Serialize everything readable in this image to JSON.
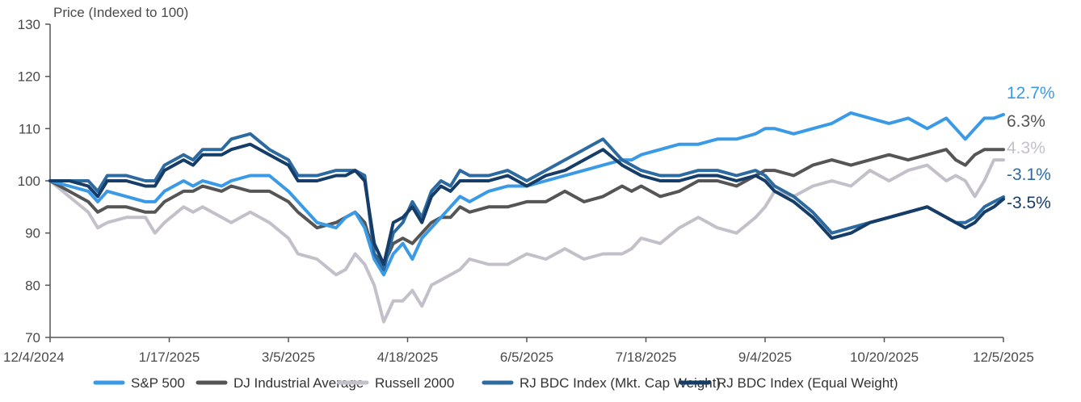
{
  "chart_data": {
    "type": "line",
    "ylabel": "Price (Indexed to 100)",
    "xlabel": "",
    "ylim": [
      70,
      130
    ],
    "yticks": [
      70,
      80,
      90,
      100,
      110,
      120,
      130
    ],
    "xticks": [
      "12/4/2024",
      "1/17/2025",
      "3/5/2025",
      "4/18/2025",
      "6/5/2025",
      "7/18/2025",
      "9/4/2025",
      "10/20/2025",
      "12/5/2025"
    ],
    "x_index_range": [
      0,
      100
    ],
    "grid": false,
    "legend_position": "bottom",
    "series": [
      {
        "name": "Russell 2000",
        "color": "#c3c0ca",
        "end_label": "4.3%",
        "x": [
          0,
          2,
          4,
          5,
          6,
          8,
          10,
          11,
          12,
          14,
          15,
          16,
          18,
          19,
          21,
          23,
          25,
          26,
          28,
          30,
          31,
          32,
          33,
          34,
          35,
          36,
          37,
          38,
          39,
          40,
          41,
          42,
          43,
          44,
          46,
          48,
          50,
          52,
          54,
          56,
          58,
          60,
          61,
          62,
          64,
          66,
          68,
          70,
          72,
          74,
          75,
          76,
          78,
          80,
          82,
          84,
          86,
          88,
          90,
          92,
          94,
          95,
          96,
          97,
          98,
          99,
          100
        ],
        "values": [
          100,
          97,
          94,
          91,
          92,
          93,
          93,
          90,
          92,
          95,
          94,
          95,
          93,
          92,
          94,
          92,
          89,
          86,
          85,
          82,
          83,
          86,
          84,
          80,
          73,
          77,
          77,
          79,
          76,
          80,
          81,
          82,
          83,
          85,
          84,
          84,
          86,
          85,
          87,
          85,
          86,
          86,
          87,
          89,
          88,
          91,
          93,
          91,
          90,
          93,
          95,
          98,
          97,
          99,
          100,
          99,
          102,
          100,
          102,
          103,
          100,
          101,
          100,
          97,
          100,
          104,
          104
        ]
      },
      {
        "name": "DJ Industrial Average",
        "color": "#555555",
        "end_label": "6.3%",
        "x": [
          0,
          2,
          4,
          5,
          6,
          8,
          10,
          11,
          12,
          14,
          15,
          16,
          18,
          19,
          21,
          23,
          25,
          26,
          28,
          30,
          31,
          32,
          33,
          34,
          35,
          36,
          37,
          38,
          39,
          40,
          41,
          42,
          43,
          44,
          46,
          48,
          50,
          52,
          54,
          56,
          58,
          60,
          61,
          62,
          64,
          66,
          68,
          70,
          72,
          74,
          75,
          76,
          78,
          80,
          82,
          84,
          86,
          88,
          90,
          92,
          94,
          95,
          96,
          97,
          98,
          99,
          100
        ],
        "values": [
          100,
          98,
          96,
          94,
          95,
          95,
          94,
          94,
          96,
          98,
          98,
          99,
          98,
          99,
          98,
          98,
          96,
          94,
          91,
          92,
          93,
          94,
          92,
          86,
          84,
          88,
          89,
          88,
          90,
          92,
          93,
          93,
          95,
          94,
          95,
          95,
          96,
          96,
          98,
          96,
          97,
          99,
          98,
          99,
          97,
          98,
          100,
          100,
          99,
          101,
          102,
          102,
          101,
          103,
          104,
          103,
          104,
          105,
          104,
          105,
          106,
          104,
          103,
          105,
          106,
          106,
          106
        ]
      },
      {
        "name": "S&P 500",
        "color": "#3a9ae6",
        "end_label": "12.7%",
        "x": [
          0,
          2,
          4,
          5,
          6,
          8,
          10,
          11,
          12,
          14,
          15,
          16,
          18,
          19,
          21,
          23,
          25,
          26,
          28,
          30,
          31,
          32,
          33,
          34,
          35,
          36,
          37,
          38,
          39,
          40,
          41,
          42,
          43,
          44,
          46,
          48,
          50,
          52,
          54,
          56,
          58,
          60,
          61,
          62,
          64,
          66,
          68,
          70,
          72,
          74,
          75,
          76,
          78,
          80,
          82,
          84,
          86,
          88,
          90,
          92,
          94,
          95,
          96,
          97,
          98,
          99,
          100
        ],
        "values": [
          100,
          99,
          98,
          96,
          98,
          97,
          96,
          96,
          98,
          100,
          99,
          100,
          99,
          100,
          101,
          101,
          98,
          96,
          92,
          91,
          93,
          94,
          91,
          85,
          82,
          86,
          88,
          85,
          89,
          91,
          93,
          95,
          97,
          96,
          98,
          99,
          99,
          100,
          101,
          102,
          103,
          104,
          104,
          105,
          106,
          107,
          107,
          108,
          108,
          109,
          110,
          110,
          109,
          110,
          111,
          113,
          112,
          111,
          112,
          110,
          112,
          110,
          108,
          110,
          112,
          112,
          112.7
        ]
      },
      {
        "name": "RJ BDC Index (Mkt. Cap Weight)",
        "color": "#2c6aa0",
        "end_label": "-3.1%",
        "x": [
          0,
          2,
          4,
          5,
          6,
          8,
          10,
          11,
          12,
          14,
          15,
          16,
          18,
          19,
          21,
          23,
          25,
          26,
          28,
          30,
          31,
          32,
          33,
          34,
          35,
          36,
          37,
          38,
          39,
          40,
          41,
          42,
          43,
          44,
          46,
          48,
          50,
          52,
          54,
          56,
          58,
          60,
          61,
          62,
          64,
          66,
          68,
          70,
          72,
          74,
          75,
          76,
          78,
          80,
          82,
          84,
          86,
          88,
          90,
          92,
          94,
          95,
          96,
          97,
          98,
          99,
          100
        ],
        "values": [
          100,
          100,
          100,
          98,
          101,
          101,
          100,
          100,
          103,
          105,
          104,
          106,
          106,
          108,
          109,
          106,
          104,
          101,
          101,
          102,
          102,
          102,
          101,
          86,
          83,
          90,
          92,
          96,
          93,
          98,
          100,
          99,
          102,
          101,
          101,
          102,
          100,
          102,
          104,
          106,
          108,
          104,
          103,
          102,
          101,
          101,
          102,
          102,
          101,
          102,
          101,
          99,
          97,
          94,
          90,
          91,
          92,
          93,
          94,
          95,
          93,
          92,
          92,
          93,
          95,
          96,
          96.9
        ]
      },
      {
        "name": "RJ BDC Index (Equal Weight)",
        "color": "#163c68",
        "end_label": "-3.5%",
        "x": [
          0,
          2,
          4,
          5,
          6,
          8,
          10,
          11,
          12,
          14,
          15,
          16,
          18,
          19,
          21,
          23,
          25,
          26,
          28,
          30,
          31,
          32,
          33,
          34,
          35,
          36,
          37,
          38,
          39,
          40,
          41,
          42,
          43,
          44,
          46,
          48,
          50,
          52,
          54,
          56,
          58,
          60,
          61,
          62,
          64,
          66,
          68,
          70,
          72,
          74,
          75,
          76,
          78,
          80,
          82,
          84,
          86,
          88,
          90,
          92,
          94,
          95,
          96,
          97,
          98,
          99,
          100
        ],
        "values": [
          100,
          100,
          99,
          97,
          100,
          100,
          99,
          99,
          102,
          104,
          103,
          105,
          105,
          106,
          107,
          105,
          103,
          100,
          100,
          101,
          101,
          102,
          100,
          88,
          84,
          92,
          93,
          95,
          92,
          97,
          99,
          98,
          100,
          100,
          100,
          101,
          99,
          101,
          102,
          104,
          106,
          103,
          102,
          101,
          100,
          100,
          101,
          101,
          100,
          101,
          100,
          98,
          96,
          93,
          89,
          90,
          92,
          93,
          94,
          95,
          93,
          92,
          91,
          92,
          94,
          95,
          96.5
        ]
      }
    ]
  }
}
